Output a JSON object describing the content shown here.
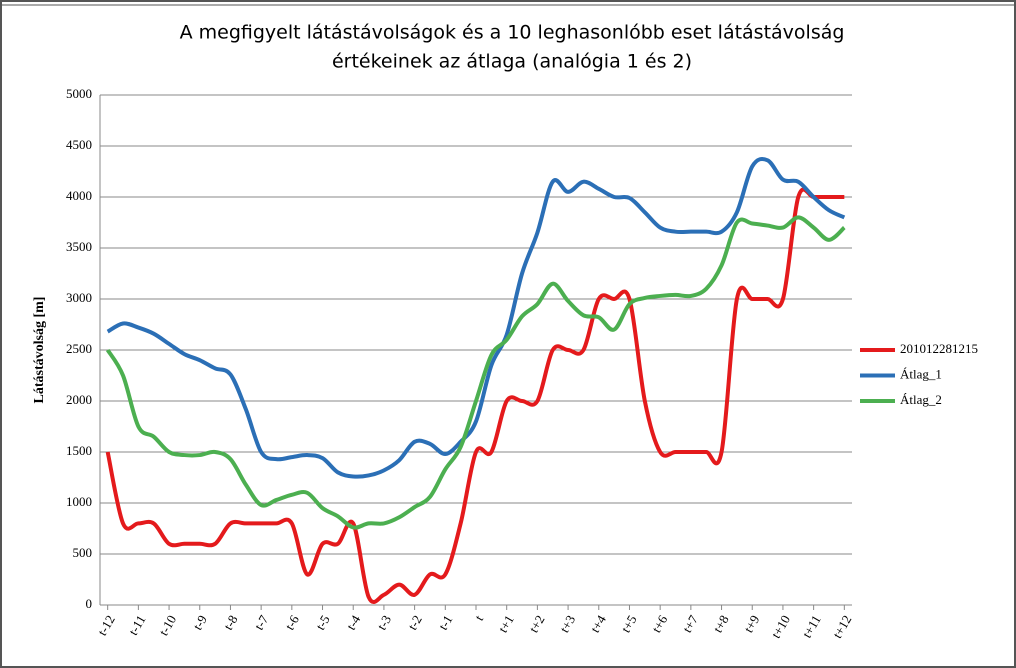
{
  "chart_data": {
    "type": "line",
    "title": [
      "A megfigyelt látástávolságok és a 10 leghasonlóbb eset látástávolság",
      "értékeinek az átlaga (analógia 1 és 2)"
    ],
    "y_label": "Látástávolság [m]",
    "categories": [
      "t-12",
      null,
      "t-11",
      null,
      "t-10",
      null,
      "t-9",
      null,
      "t-8",
      null,
      "t-7",
      null,
      "t-6",
      null,
      "t-5",
      null,
      "t-4",
      null,
      "t-3",
      null,
      "t-2",
      null,
      "t-1",
      null,
      "t",
      null,
      "t+1",
      null,
      "t+2",
      null,
      "t+3",
      null,
      "t+4",
      null,
      "t+5",
      null,
      "t+6",
      null,
      "t+7",
      null,
      "t+8",
      null,
      "t+9",
      null,
      "t+10",
      null,
      "t+11",
      null,
      "t+12"
    ],
    "series": [
      {
        "name": "201012281215",
        "color": "#e41a1c",
        "values": [
          1500,
          800,
          800,
          800,
          600,
          600,
          600,
          600,
          800,
          800,
          800,
          800,
          800,
          300,
          600,
          600,
          800,
          80,
          100,
          200,
          100,
          300,
          300,
          800,
          1500,
          1500,
          2000,
          2000,
          2000,
          2500,
          2500,
          2500,
          3000,
          3000,
          3000,
          2000,
          1500,
          1500,
          1500,
          1500,
          1500,
          3000,
          3000,
          3000,
          3000,
          4000,
          4000,
          4000,
          4000
        ]
      },
      {
        "name": "Átlag_1",
        "color": "#2b6fb6",
        "values": [
          2680,
          2760,
          2720,
          2660,
          2560,
          2460,
          2400,
          2320,
          2260,
          1920,
          1500,
          1430,
          1450,
          1470,
          1440,
          1300,
          1260,
          1270,
          1320,
          1420,
          1600,
          1580,
          1480,
          1600,
          1800,
          2350,
          2650,
          3250,
          3650,
          4150,
          4050,
          4150,
          4080,
          4000,
          3990,
          3850,
          3700,
          3660,
          3660,
          3660,
          3660,
          3850,
          4300,
          4360,
          4170,
          4150,
          4000,
          3870,
          3800
        ]
      },
      {
        "name": "Átlag_2",
        "color": "#4caf50",
        "values": [
          2500,
          2250,
          1750,
          1650,
          1500,
          1470,
          1470,
          1500,
          1430,
          1180,
          980,
          1030,
          1080,
          1100,
          950,
          870,
          760,
          800,
          800,
          860,
          960,
          1060,
          1330,
          1550,
          2000,
          2450,
          2600,
          2830,
          2950,
          3150,
          2980,
          2840,
          2820,
          2700,
          2950,
          3010,
          3030,
          3040,
          3030,
          3100,
          3330,
          3750,
          3740,
          3720,
          3700,
          3800,
          3700,
          3580,
          3700
        ]
      }
    ],
    "ylim": [
      0,
      5000
    ],
    "yticks": [
      0,
      500,
      1000,
      1500,
      2000,
      2500,
      3000,
      3500,
      4000,
      4500,
      5000
    ],
    "grid": true,
    "legend": "right"
  }
}
